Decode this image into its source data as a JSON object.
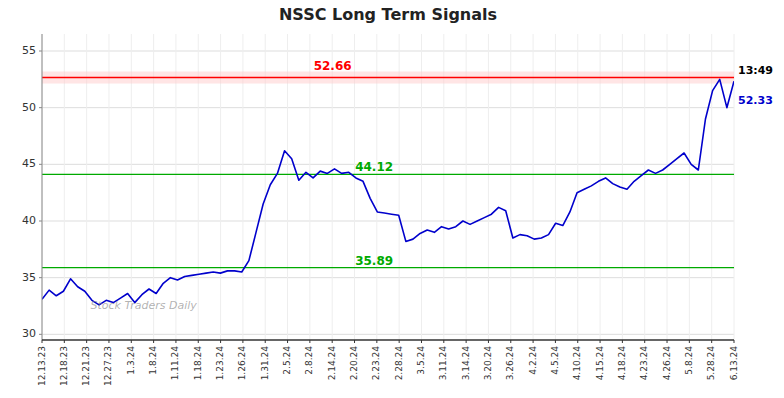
{
  "chart_data": {
    "type": "line",
    "title": "NSSC Long Term Signals",
    "values": [
      33.1,
      33.9,
      33.4,
      33.8,
      34.9,
      34.2,
      33.8,
      33.0,
      32.6,
      33.0,
      32.8,
      33.2,
      33.6,
      32.8,
      33.5,
      34.0,
      33.6,
      34.5,
      35.0,
      34.8,
      35.1,
      35.2,
      35.3,
      35.4,
      35.5,
      35.4,
      35.6,
      35.6,
      35.5,
      36.5,
      39.0,
      41.5,
      43.2,
      44.2,
      46.2,
      45.5,
      43.6,
      44.3,
      43.8,
      44.4,
      44.2,
      44.6,
      44.2,
      44.3,
      43.8,
      43.5,
      42.0,
      40.8,
      40.7,
      40.6,
      40.5,
      38.2,
      38.4,
      38.9,
      39.2,
      39.0,
      39.5,
      39.3,
      39.5,
      40.0,
      39.7,
      40.0,
      40.3,
      40.6,
      41.2,
      40.9,
      38.5,
      38.8,
      38.7,
      38.4,
      38.5,
      38.8,
      39.8,
      39.6,
      40.8,
      42.5,
      42.8,
      43.1,
      43.5,
      43.8,
      43.3,
      43.0,
      42.8,
      43.5,
      44.0,
      44.5,
      44.2,
      44.5,
      45.0,
      45.5,
      46.0,
      45.0,
      44.5,
      49.0,
      51.5,
      52.5,
      50.0,
      52.33
    ],
    "color": "#0000CC",
    "ylim": [
      29.5,
      56.5
    ],
    "yticks": [
      30,
      35,
      40,
      45,
      50,
      55
    ],
    "grid": true,
    "xtick_labels": [
      "12.13.23",
      "12.18.23",
      "12.21.23",
      "12.27.23",
      "1.3.24",
      "1.8.24",
      "1.11.24",
      "1.18.24",
      "1.23.24",
      "1.26.24",
      "1.31.24",
      "2.5.24",
      "2.8.24",
      "2.14.24",
      "2.20.24",
      "2.23.24",
      "2.28.24",
      "3.5.24",
      "3.11.24",
      "3.14.24",
      "3.20.24",
      "3.26.24",
      "4.2.24",
      "4.5.24",
      "4.10.24",
      "4.15.24",
      "4.18.24",
      "4.23.24",
      "4.26.24",
      "5.8.24",
      "5.28.24",
      "6.13.24"
    ],
    "reference_lines": [
      {
        "value": 52.66,
        "color": "#FF0000",
        "band_color": "#FFCCCC"
      },
      {
        "value": 44.12,
        "color": "#00AA00"
      },
      {
        "value": 35.89,
        "color": "#00AA00"
      }
    ],
    "last_time": "13:49",
    "watermark": "Stock Traders Daily"
  }
}
